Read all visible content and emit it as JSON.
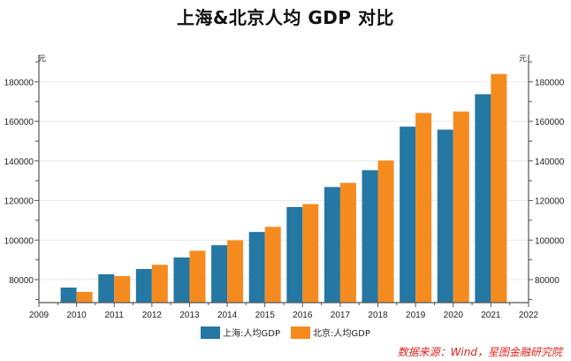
{
  "chart_data": {
    "type": "bar",
    "title": "上海&北京人均 GDP 对比",
    "xlabel": "",
    "ylabel_left": "元",
    "ylabel_right": "元",
    "categories": [
      "2010",
      "2011",
      "2012",
      "2013",
      "2014",
      "2015",
      "2016",
      "2017",
      "2018",
      "2019",
      "2020",
      "2021"
    ],
    "x_ticks": [
      "2009",
      "2010",
      "2011",
      "2012",
      "2013",
      "2014",
      "2015",
      "2016",
      "2017",
      "2018",
      "2019",
      "2020",
      "2021",
      "2022"
    ],
    "series": [
      {
        "name": "上海:人均GDP",
        "color": "#2577a4",
        "values": [
          76000,
          82700,
          85400,
          91200,
          97400,
          104100,
          116700,
          126800,
          135300,
          157300,
          155800,
          173700
        ]
      },
      {
        "name": "北京:人均GDP",
        "color": "#f58b1f",
        "values": [
          73800,
          81800,
          87500,
          94600,
          99900,
          106700,
          118200,
          128900,
          140200,
          164200,
          164900,
          183900
        ]
      }
    ],
    "ylim": [
      68400,
      190000
    ],
    "y_ticks": [
      80000,
      100000,
      120000,
      140000,
      160000,
      180000
    ],
    "grid": true,
    "legend_position": "bottom"
  },
  "source_note": "数据来源：Wind，星图金融研究院"
}
